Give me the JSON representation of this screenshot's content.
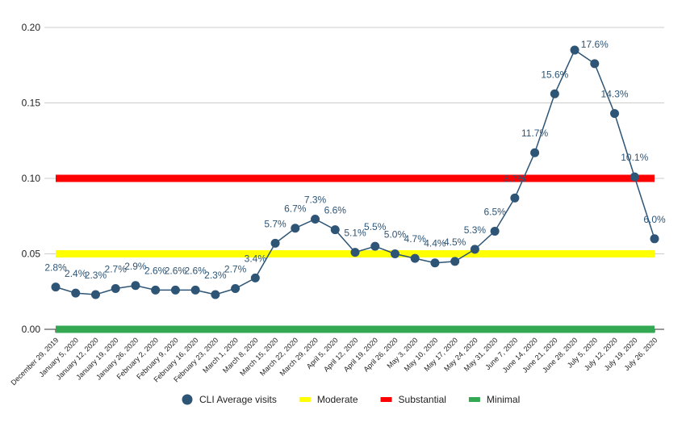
{
  "chart_data": {
    "type": "line",
    "categories": [
      "December 29, 2019",
      "January 5, 2020",
      "January 12, 2020",
      "January 19, 2020",
      "January 26, 2020",
      "February 2, 2020",
      "February 9, 2020",
      "February 16, 2020",
      "February 23, 2020",
      "March 1, 2020",
      "March 8, 2020",
      "March 15, 2020",
      "March 22, 2020",
      "March 29, 2020",
      "April 5, 2020",
      "April 12, 2020",
      "April 19, 2020",
      "April 26, 2020",
      "May 3, 2020",
      "May 10, 2020",
      "May 17, 2020",
      "May 24, 2020",
      "May 31, 2020",
      "June 7, 2020",
      "June 14, 2020",
      "June 21, 2020",
      "June 28, 2020",
      "July 5, 2020",
      "July 12, 2020",
      "July 19, 2020",
      "July 26, 2020"
    ],
    "series": [
      {
        "name": "CLI Average visits",
        "color": "#2e5576",
        "values": [
          0.028,
          0.024,
          0.023,
          0.027,
          0.029,
          0.026,
          0.026,
          0.026,
          0.023,
          0.027,
          0.034,
          0.057,
          0.067,
          0.073,
          0.066,
          0.051,
          0.055,
          0.05,
          0.047,
          0.044,
          0.045,
          0.053,
          0.065,
          0.087,
          0.117,
          0.156,
          0.185,
          0.176,
          0.143,
          0.101,
          0.06
        ],
        "value_labels": [
          "2.8%",
          "2.4%",
          "2.3%",
          "2.7%",
          "2.9%",
          "2.6%",
          "2.6%",
          "2.6%",
          "2.3%",
          "2.7%",
          "3.4%",
          "5.7%",
          "6.7%",
          "7.3%",
          "6.6%",
          "5.1%",
          "5.5%",
          "5.0%",
          "4.7%",
          "4.4%",
          "4.5%",
          "5.3%",
          "6.5%",
          "8.7%",
          "11.7%",
          "15.6%",
          null,
          "17.6%",
          "14.3%",
          "10.1%",
          "6.0%"
        ]
      },
      {
        "name": "Moderate",
        "color": "#ffff00",
        "value": 0.05
      },
      {
        "name": "Substantial",
        "color": "#ff0000",
        "value": 0.1
      },
      {
        "name": "Minimal",
        "color": "#34a853",
        "value": 0
      }
    ],
    "ylim": [
      0,
      0.2
    ],
    "yticks": [
      {
        "value": 0,
        "label": "0.00"
      },
      0.05,
      {
        "value": 0.1,
        "label": "0.10"
      },
      0.15,
      {
        "value": 0.2,
        "label": "0.20"
      }
    ],
    "grid": true,
    "legend": "bottom"
  }
}
